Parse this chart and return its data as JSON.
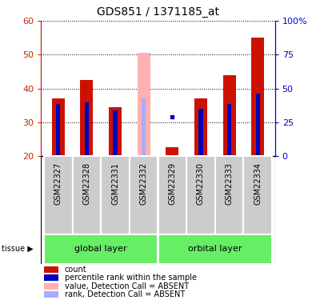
{
  "title": "GDS851 / 1371185_at",
  "samples": [
    "GSM22327",
    "GSM22328",
    "GSM22331",
    "GSM22332",
    "GSM22329",
    "GSM22330",
    "GSM22333",
    "GSM22334"
  ],
  "count_values": [
    37.0,
    42.5,
    34.5,
    null,
    22.5,
    37.0,
    44.0,
    55.0
  ],
  "rank_values": [
    35.5,
    36.0,
    33.5,
    null,
    null,
    34.0,
    35.5,
    38.5
  ],
  "absent_count": [
    null,
    null,
    null,
    50.5,
    null,
    null,
    null,
    null
  ],
  "absent_rank": [
    null,
    null,
    null,
    37.0,
    null,
    null,
    null,
    null
  ],
  "percentile_rank_dot": [
    null,
    null,
    null,
    null,
    31.5,
    null,
    null,
    null
  ],
  "tissue_groups": [
    {
      "label": "global layer",
      "start": 0,
      "end": 3
    },
    {
      "label": "orbital layer",
      "start": 4,
      "end": 7
    }
  ],
  "ylim": [
    20,
    60
  ],
  "yticks_left": [
    20,
    30,
    40,
    50,
    60
  ],
  "yticks_right_vals": [
    0,
    25,
    50,
    75,
    100
  ],
  "yticks_right_labels": [
    "0",
    "25",
    "50",
    "75",
    "100%"
  ],
  "ylabel_left_color": "#cc2200",
  "ylabel_right_color": "#0000cc",
  "bar_color_count": "#cc1100",
  "bar_color_rank": "#0000bb",
  "bar_color_absent_count": "#ffb0b0",
  "bar_color_absent_rank": "#aaaaff",
  "dot_color_rank": "#0000bb",
  "tissue_bg_color": "#66ee66",
  "sample_bg_color": "#cccccc",
  "legend_items": [
    {
      "color": "#cc1100",
      "label": "count"
    },
    {
      "color": "#0000bb",
      "label": "percentile rank within the sa​mple"
    },
    {
      "color": "#ffb0b0",
      "label": "value, Detection Call = ABSENT"
    },
    {
      "color": "#aaaaff",
      "label": "rank, Detection Call = ABSENT"
    }
  ],
  "bar_width": 0.45,
  "rank_bar_width": 0.15,
  "baseline": 20
}
